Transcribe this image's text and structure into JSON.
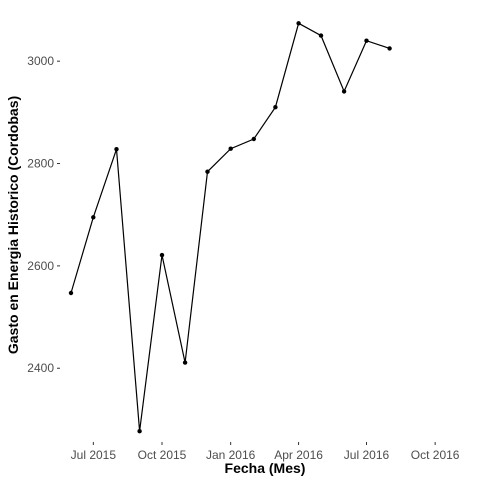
{
  "chart_data": {
    "type": "line",
    "title": "",
    "xlabel": "Fecha (Mes)",
    "ylabel": "Gasto en Energia Historico (Cordobas)",
    "x": [
      "2015-06-01",
      "2015-07-01",
      "2015-08-01",
      "2015-09-01",
      "2015-10-01",
      "2015-11-01",
      "2015-12-01",
      "2016-01-01",
      "2016-02-01",
      "2016-03-01",
      "2016-04-01",
      "2016-05-01",
      "2016-06-01",
      "2016-07-01",
      "2016-08-01"
    ],
    "y": [
      2547,
      2695,
      2828,
      2277,
      2621,
      2411,
      2784,
      2829,
      2848,
      2910,
      3074,
      3050,
      2941,
      3040,
      3025
    ],
    "xlim": [
      "2015-05-20",
      "2016-11-10"
    ],
    "ylim": [
      2250,
      3100
    ],
    "x_ticks": [
      {
        "date": "2015-07-01",
        "label": "Jul 2015"
      },
      {
        "date": "2015-10-01",
        "label": "Oct 2015"
      },
      {
        "date": "2016-01-01",
        "label": "Jan 2016"
      },
      {
        "date": "2016-04-01",
        "label": "Apr 2016"
      },
      {
        "date": "2016-07-01",
        "label": "Jul 2016"
      },
      {
        "date": "2016-10-01",
        "label": "Oct 2016"
      }
    ],
    "y_ticks": [
      {
        "value": 2400,
        "label": "2400"
      },
      {
        "value": 2600,
        "label": "2600"
      },
      {
        "value": 2800,
        "label": "2800"
      },
      {
        "value": 3000,
        "label": "3000"
      }
    ],
    "grid": false,
    "legend": "none",
    "line_color": "#000000",
    "point_color": "#000000"
  }
}
